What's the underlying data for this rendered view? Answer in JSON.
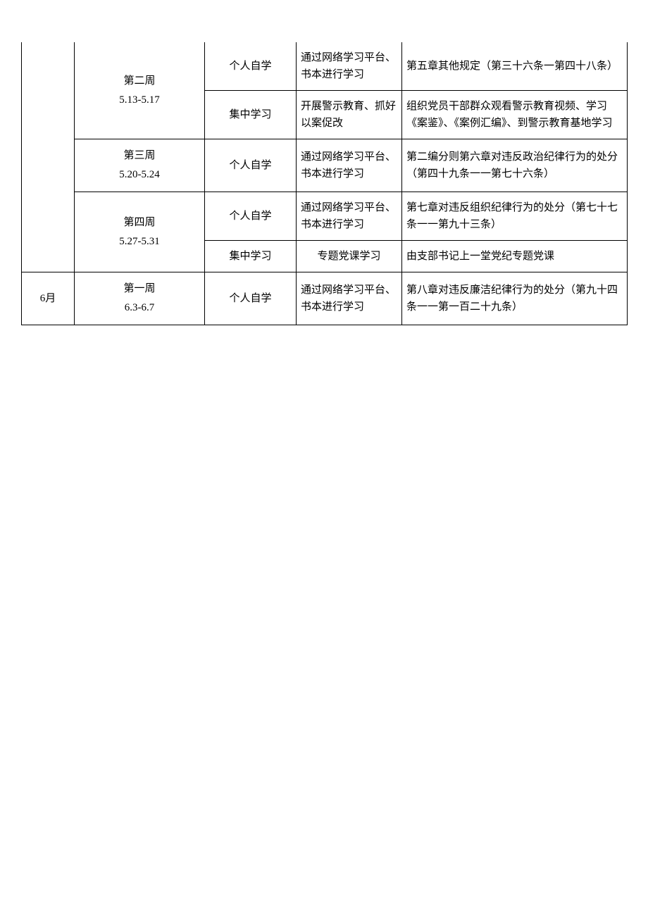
{
  "table": {
    "columns": {
      "month_width": 75,
      "week_width": 185,
      "type_width": 130,
      "method_width": 150,
      "content_width": 320
    },
    "border_color": "#000000",
    "background_color": "#ffffff",
    "text_color": "#000000",
    "font_size": 15,
    "font_family": "SimSun",
    "rows": [
      {
        "month": "",
        "week_line1": "第二周",
        "week_line2": "5.13-5.17",
        "type": "个人自学",
        "method": "通过网络学习平台、书本进行学习",
        "content": "第五章其他规定（第三十六条一第四十八条）"
      },
      {
        "month": "",
        "week_line1": "",
        "week_line2": "",
        "type": "集中学习",
        "method": "开展警示教育、抓好以案促改",
        "content": "组织党员干部群众观看警示教育视频、学习《案鉴》、《案例汇编》、到警示教育基地学习"
      },
      {
        "month": "",
        "week_line1": "第三周",
        "week_line2": "5.20-5.24",
        "type": "个人自学",
        "method": "通过网络学习平台、书本进行学习",
        "content": "第二编分则第六章对违反政治纪律行为的处分（第四十九条一一第七十六条）"
      },
      {
        "month": "",
        "week_line1": "第四周",
        "week_line2": "5.27-5.31",
        "type": "个人自学",
        "method": "通过网络学习平台、书本进行学习",
        "content": "第七章对违反组织纪律行为的处分（第七十七条一一第九十三条）"
      },
      {
        "month": "",
        "week_line1": "",
        "week_line2": "",
        "type": "集中学习",
        "method": "专题党课学习",
        "content": "由支部书记上一堂党纪专题党课"
      },
      {
        "month": "6月",
        "week_line1": "第一周",
        "week_line2": "6.3-6.7",
        "type": "个人自学",
        "method": "通过网络学习平台、书本进行学习",
        "content": "第八章对违反廉洁纪律行为的处分（第九十四条一一第一百二十九条）"
      }
    ]
  }
}
